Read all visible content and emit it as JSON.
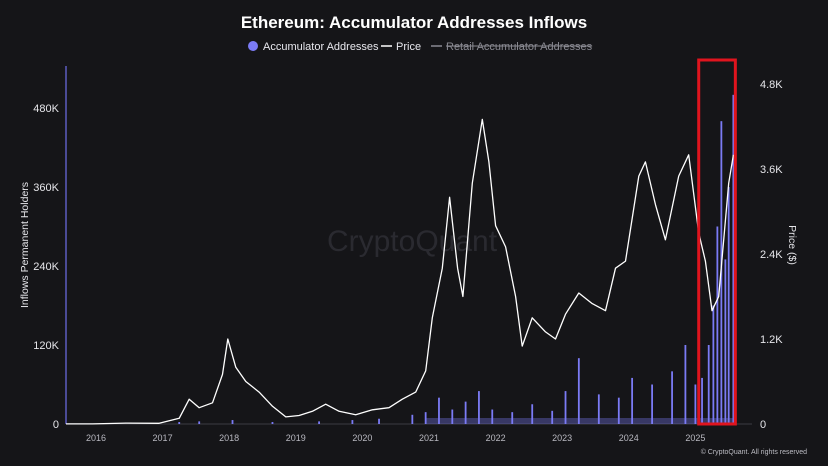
{
  "chart_data": {
    "type": "bar+line",
    "title": "Ethereum: Accumulator Addresses Inflows",
    "legend": {
      "placement": "top-center",
      "items": [
        {
          "label": "Accumulator Addresses",
          "marker": "dot",
          "color": "#7b7bf5",
          "active": true
        },
        {
          "label": "Price",
          "marker": "line",
          "color": "#ffffff",
          "active": true
        },
        {
          "label": "Retail Accumulator Addresses",
          "marker": "line",
          "color": "#8a8a92",
          "active": false
        }
      ]
    },
    "watermark": "CryptoQuant",
    "copyright": "© CryptoQuant. All rights reserved",
    "x_axis": {
      "ticks": [
        "2016",
        "2017",
        "2018",
        "2019",
        "2020",
        "2021",
        "2022",
        "2023",
        "2024",
        "2025"
      ],
      "range": [
        2015.6,
        2025.9
      ]
    },
    "y_left": {
      "title": "Inflows Permanent Holders",
      "ticks": [
        "0",
        "120K",
        "240K",
        "360K",
        "480K"
      ],
      "range": [
        0,
        480000
      ]
    },
    "y_right": {
      "title": "Price ($)",
      "ticks": [
        "0",
        "1.2K",
        "2.4K",
        "3.6K",
        "4.8K"
      ],
      "range": [
        0,
        4800
      ]
    },
    "series": [
      {
        "name": "Price",
        "axis": "right",
        "color": "#ffffff",
        "x": [
          2015.6,
          2016.0,
          2016.5,
          2017.0,
          2017.3,
          2017.45,
          2017.6,
          2017.8,
          2017.95,
          2018.03,
          2018.15,
          2018.3,
          2018.5,
          2018.7,
          2018.9,
          2019.1,
          2019.3,
          2019.5,
          2019.7,
          2019.95,
          2020.2,
          2020.45,
          2020.65,
          2020.85,
          2021.0,
          2021.1,
          2021.25,
          2021.36,
          2021.48,
          2021.56,
          2021.7,
          2021.85,
          2021.95,
          2022.05,
          2022.2,
          2022.35,
          2022.45,
          2022.6,
          2022.8,
          2022.95,
          2023.1,
          2023.3,
          2023.5,
          2023.7,
          2023.85,
          2024.0,
          2024.2,
          2024.3,
          2024.45,
          2024.6,
          2024.8,
          2024.95,
          2025.1,
          2025.2,
          2025.3,
          2025.4,
          2025.55,
          2025.62
        ],
        "values": [
          1,
          1,
          12,
          10,
          80,
          350,
          230,
          300,
          700,
          1200,
          800,
          600,
          450,
          250,
          100,
          120,
          180,
          280,
          180,
          130,
          200,
          230,
          350,
          450,
          750,
          1500,
          2200,
          3200,
          2200,
          1800,
          3400,
          4300,
          3700,
          2800,
          2500,
          1800,
          1100,
          1500,
          1300,
          1200,
          1550,
          1850,
          1700,
          1600,
          2200,
          2300,
          3500,
          3700,
          3100,
          2600,
          3500,
          3800,
          2700,
          2300,
          1600,
          1800,
          3400,
          3800
        ]
      },
      {
        "name": "Accumulator Addresses",
        "axis": "left",
        "color": "#7b7bf5",
        "style": "bars",
        "x": [
          2017.3,
          2017.6,
          2018.1,
          2018.7,
          2019.4,
          2019.9,
          2020.3,
          2020.8,
          2021.0,
          2021.2,
          2021.4,
          2021.6,
          2021.8,
          2022.0,
          2022.3,
          2022.6,
          2022.9,
          2023.1,
          2023.3,
          2023.6,
          2023.9,
          2024.1,
          2024.4,
          2024.7,
          2024.9,
          2025.05,
          2025.15,
          2025.25,
          2025.32,
          2025.38,
          2025.44,
          2025.5,
          2025.55,
          2025.62
        ],
        "values": [
          3000,
          4000,
          6000,
          3000,
          4000,
          6000,
          8000,
          14000,
          18000,
          40000,
          22000,
          34000,
          50000,
          22000,
          18000,
          30000,
          20000,
          50000,
          100000,
          45000,
          40000,
          70000,
          60000,
          80000,
          120000,
          60000,
          70000,
          120000,
          180000,
          300000,
          460000,
          250000,
          360000,
          500000
        ]
      }
    ],
    "annotations": [
      {
        "type": "highlight-box",
        "color": "#e0141e",
        "x_range": [
          2025.1,
          2025.65
        ]
      }
    ]
  }
}
